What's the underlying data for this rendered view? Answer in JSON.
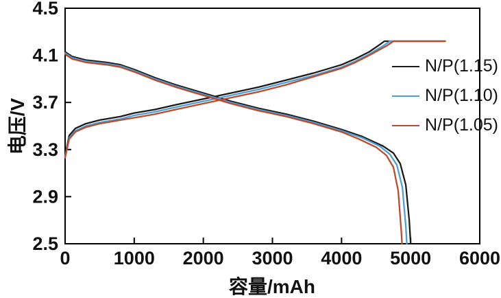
{
  "figure": {
    "background": "#ffffff",
    "axis_color": "#000000",
    "text_color": "#111111"
  },
  "chart_data": {
    "type": "line",
    "title": "",
    "xlabel": "容量/mAh",
    "ylabel": "电压/V",
    "xlim": [
      0,
      6000
    ],
    "ylim": [
      2.5,
      4.5
    ],
    "xticks": [
      0,
      1000,
      2000,
      3000,
      4000,
      5000,
      6000
    ],
    "yticks": [
      2.5,
      2.9,
      3.3,
      3.7,
      4.1,
      4.5
    ],
    "grid": false,
    "legend_position": "right-center",
    "series": [
      {
        "name": "N/P(1.15)",
        "color": "#1a1a1a",
        "curves": {
          "charge": [
            [
              0,
              3.25
            ],
            [
              60,
              3.42
            ],
            [
              150,
              3.48
            ],
            [
              300,
              3.52
            ],
            [
              500,
              3.55
            ],
            [
              800,
              3.58
            ],
            [
              1000,
              3.61
            ],
            [
              1300,
              3.64
            ],
            [
              1600,
              3.68
            ],
            [
              2000,
              3.73
            ],
            [
              2400,
              3.78
            ],
            [
              2800,
              3.83
            ],
            [
              3200,
              3.89
            ],
            [
              3600,
              3.95
            ],
            [
              4000,
              4.02
            ],
            [
              4200,
              4.07
            ],
            [
              4400,
              4.13
            ],
            [
              4550,
              4.19
            ],
            [
              4620,
              4.22
            ],
            [
              5500,
              4.22
            ]
          ],
          "discharge": [
            [
              0,
              4.13
            ],
            [
              100,
              4.09
            ],
            [
              300,
              4.06
            ],
            [
              600,
              4.04
            ],
            [
              800,
              4.02
            ],
            [
              1000,
              3.98
            ],
            [
              1300,
              3.91
            ],
            [
              1600,
              3.85
            ],
            [
              2000,
              3.78
            ],
            [
              2400,
              3.71
            ],
            [
              2800,
              3.65
            ],
            [
              3200,
              3.6
            ],
            [
              3600,
              3.54
            ],
            [
              4000,
              3.47
            ],
            [
              4300,
              3.41
            ],
            [
              4600,
              3.33
            ],
            [
              4750,
              3.27
            ],
            [
              4850,
              3.18
            ],
            [
              4930,
              3.0
            ],
            [
              4980,
              2.7
            ],
            [
              5000,
              2.5
            ]
          ]
        }
      },
      {
        "name": "N/P(1.10)",
        "color": "#4d9fd6",
        "curves": {
          "charge": [
            [
              0,
              3.24
            ],
            [
              60,
              3.4
            ],
            [
              150,
              3.46
            ],
            [
              300,
              3.5
            ],
            [
              500,
              3.53
            ],
            [
              800,
              3.56
            ],
            [
              1000,
              3.59
            ],
            [
              1300,
              3.62
            ],
            [
              1600,
              3.66
            ],
            [
              2000,
              3.71
            ],
            [
              2400,
              3.76
            ],
            [
              2800,
              3.81
            ],
            [
              3200,
              3.87
            ],
            [
              3600,
              3.93
            ],
            [
              4000,
              4.0
            ],
            [
              4200,
              4.05
            ],
            [
              4400,
              4.11
            ],
            [
              4600,
              4.18
            ],
            [
              4700,
              4.22
            ],
            [
              5500,
              4.22
            ]
          ],
          "discharge": [
            [
              0,
              4.12
            ],
            [
              100,
              4.08
            ],
            [
              300,
              4.05
            ],
            [
              600,
              4.03
            ],
            [
              800,
              4.01
            ],
            [
              1000,
              3.97
            ],
            [
              1300,
              3.9
            ],
            [
              1600,
              3.84
            ],
            [
              2000,
              3.77
            ],
            [
              2400,
              3.7
            ],
            [
              2800,
              3.64
            ],
            [
              3200,
              3.59
            ],
            [
              3600,
              3.53
            ],
            [
              4000,
              3.46
            ],
            [
              4300,
              3.4
            ],
            [
              4550,
              3.33
            ],
            [
              4700,
              3.26
            ],
            [
              4800,
              3.17
            ],
            [
              4880,
              2.98
            ],
            [
              4930,
              2.65
            ],
            [
              4945,
              2.5
            ]
          ]
        }
      },
      {
        "name": "N/P(1.05)",
        "color": "#bf4a2a",
        "curves": {
          "charge": [
            [
              0,
              3.23
            ],
            [
              60,
              3.39
            ],
            [
              150,
              3.45
            ],
            [
              300,
              3.49
            ],
            [
              500,
              3.52
            ],
            [
              800,
              3.55
            ],
            [
              1000,
              3.57
            ],
            [
              1300,
              3.6
            ],
            [
              1600,
              3.64
            ],
            [
              2000,
              3.69
            ],
            [
              2400,
              3.74
            ],
            [
              2800,
              3.79
            ],
            [
              3200,
              3.85
            ],
            [
              3600,
              3.92
            ],
            [
              4000,
              3.99
            ],
            [
              4200,
              4.04
            ],
            [
              4400,
              4.1
            ],
            [
              4650,
              4.18
            ],
            [
              4750,
              4.22
            ],
            [
              5500,
              4.22
            ]
          ],
          "discharge": [
            [
              0,
              4.11
            ],
            [
              100,
              4.07
            ],
            [
              300,
              4.04
            ],
            [
              600,
              4.02
            ],
            [
              800,
              4.0
            ],
            [
              1000,
              3.96
            ],
            [
              1300,
              3.89
            ],
            [
              1600,
              3.83
            ],
            [
              2000,
              3.76
            ],
            [
              2400,
              3.69
            ],
            [
              2800,
              3.63
            ],
            [
              3200,
              3.58
            ],
            [
              3600,
              3.52
            ],
            [
              4000,
              3.45
            ],
            [
              4250,
              3.39
            ],
            [
              4500,
              3.32
            ],
            [
              4650,
              3.25
            ],
            [
              4750,
              3.15
            ],
            [
              4820,
              2.95
            ],
            [
              4865,
              2.6
            ],
            [
              4875,
              2.5
            ]
          ]
        }
      }
    ]
  }
}
